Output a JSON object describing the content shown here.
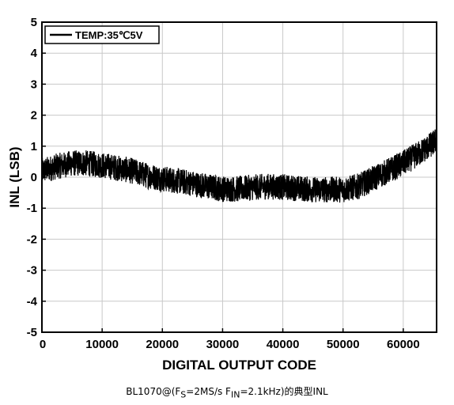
{
  "chart_data": {
    "type": "line",
    "xlabel": "DIGITAL OUTPUT CODE",
    "ylabel": "INL (LSB)",
    "xlim": [
      0,
      65535
    ],
    "ylim": [
      -5,
      5
    ],
    "x_ticks": [
      0,
      10000,
      20000,
      30000,
      40000,
      50000,
      60000
    ],
    "y_ticks": [
      5,
      4,
      3,
      2,
      1,
      0,
      -1,
      -2,
      -3,
      -4,
      -5
    ],
    "grid": true,
    "legend_position": "top-left",
    "line_color": "#000000",
    "series": [
      {
        "name": "TEMP:35℃5V",
        "noise_band": 0.42,
        "x": [
          0,
          2500,
          5000,
          7500,
          10000,
          12500,
          15000,
          17500,
          20000,
          22500,
          25000,
          27500,
          30000,
          32500,
          35000,
          37500,
          40000,
          42500,
          45000,
          47500,
          50000,
          52500,
          55000,
          57500,
          60000,
          62500,
          65000,
          65535
        ],
        "y": [
          0.2,
          0.35,
          0.45,
          0.45,
          0.38,
          0.3,
          0.2,
          0.05,
          -0.05,
          -0.12,
          -0.2,
          -0.3,
          -0.38,
          -0.38,
          -0.33,
          -0.3,
          -0.32,
          -0.36,
          -0.4,
          -0.4,
          -0.4,
          -0.3,
          -0.05,
          0.2,
          0.45,
          0.75,
          1.1,
          1.2
        ]
      }
    ]
  },
  "caption": {
    "prefix": "BL1070@(F",
    "sub1": "S",
    "mid": "=2MS/s F",
    "sub2": "IN",
    "suffix": "=2.1kHz)的典型INL"
  }
}
